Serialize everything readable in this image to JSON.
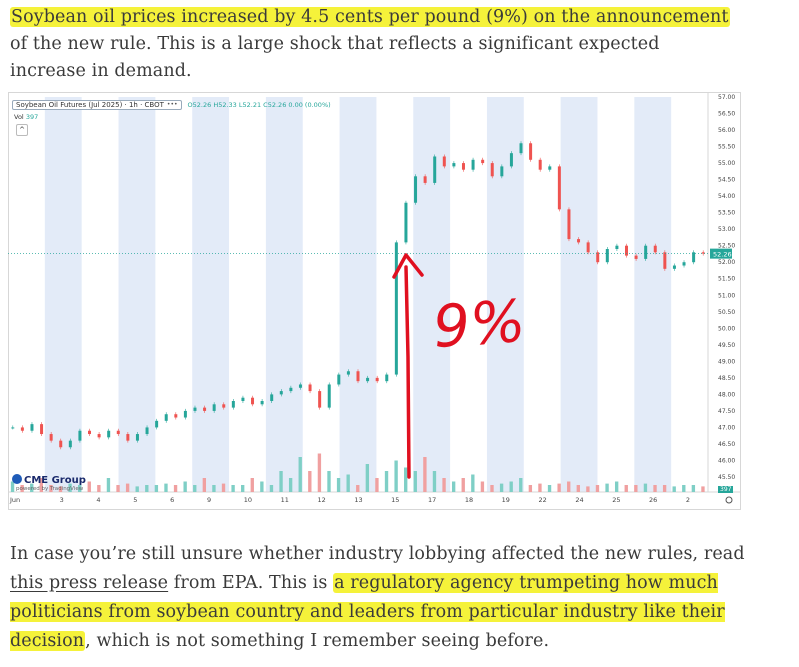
{
  "paragraph1": {
    "highlighted": "Soybean oil prices increased by 4.5 cents per pound (9%) on the announcement",
    "rest": " of the new rule. This is a large shock that reflects a significant expected increase in demand."
  },
  "paragraph2": {
    "part1": "In case you’re still unsure whether industry lobbying affected the new rules, read ",
    "link_text": "this press release",
    "part2": " from EPA. This is ",
    "highlighted": "a regulatory agency trumpeting how much politicians from soybean country and leaders from particular industry like their decision",
    "part3": ", which is not something I remember seeing before."
  },
  "chart_header": {
    "symbol": "Soybean Oil Futures (Jul 2025) · 1h · CBOT",
    "dots": "•••",
    "ohlc": "O52.26 H52.33 L52.21 C52.26 0.00 (0.00%)",
    "vol_label": "Vol",
    "vol_value": "397",
    "collapse": "^"
  },
  "chart_branding": {
    "logo": "CME Group",
    "powered": "powered by TradingView"
  },
  "annotation": {
    "text": "9%",
    "color": "#e01020"
  },
  "chart_data": {
    "type": "line",
    "title": "Soybean Oil Futures (Jul 2025) · 1h · CBOT",
    "x_ticks": [
      "Jun",
      "3",
      "4",
      "5",
      "6",
      "9",
      "10",
      "11",
      "12",
      "13",
      "15",
      "17",
      "18",
      "19",
      "22",
      "24",
      "25",
      "26",
      "2"
    ],
    "y_ticks": [
      45.5,
      46.0,
      46.5,
      47.0,
      47.5,
      48.0,
      48.5,
      49.0,
      49.5,
      50.0,
      50.5,
      51.0,
      51.5,
      52.0,
      52.5,
      53.0,
      53.5,
      54.0,
      54.5,
      55.0,
      55.5,
      56.0,
      56.5,
      57.0
    ],
    "ylim": [
      45.5,
      57.0
    ],
    "current_price_label": "52.26",
    "volume_label": "397",
    "colors": {
      "up": "#26a69a",
      "down": "#ef5350",
      "grid": "#e3ebf8",
      "price_line": "#26a69a"
    },
    "series": [
      {
        "values": [
          47.0,
          46.9,
          47.1,
          46.8,
          46.6,
          46.4,
          46.6,
          46.9,
          46.8,
          46.7,
          46.9,
          46.8,
          46.6,
          46.8,
          47.0,
          47.2,
          47.4,
          47.3,
          47.5,
          47.6,
          47.5,
          47.7,
          47.6,
          47.8,
          47.9,
          47.7,
          47.8,
          48.0,
          48.1,
          48.2,
          48.3,
          48.1,
          47.6,
          48.3,
          48.6,
          48.7,
          48.4,
          48.5,
          48.4,
          48.6,
          52.6,
          53.8,
          54.6,
          54.4,
          55.2,
          54.9,
          55.0,
          54.8,
          55.1,
          55.0,
          54.6,
          54.9,
          55.3,
          55.6,
          55.1,
          54.8,
          54.9,
          53.6,
          52.7,
          52.6,
          52.3,
          52.0,
          52.4,
          52.5,
          52.2,
          52.1,
          52.5,
          52.3,
          51.8,
          51.9,
          52.0,
          52.3,
          52.26
        ]
      }
    ],
    "volume": [
      0.15,
      0.1,
      0.12,
      0.2,
      0.1,
      0.08,
      0.12,
      0.1,
      0.15,
      0.1,
      0.2,
      0.1,
      0.12,
      0.08,
      0.1,
      0.1,
      0.12,
      0.1,
      0.15,
      0.1,
      0.2,
      0.1,
      0.12,
      0.1,
      0.1,
      0.2,
      0.15,
      0.1,
      0.3,
      0.2,
      0.5,
      0.3,
      0.55,
      0.3,
      0.2,
      0.25,
      0.1,
      0.4,
      0.2,
      0.3,
      0.45,
      0.35,
      0.3,
      0.5,
      0.3,
      0.2,
      0.15,
      0.2,
      0.25,
      0.15,
      0.1,
      0.12,
      0.15,
      0.2,
      0.1,
      0.12,
      0.1,
      0.12,
      0.15,
      0.1,
      0.08,
      0.1,
      0.12,
      0.15,
      0.1,
      0.1,
      0.12,
      0.1,
      0.1,
      0.08,
      0.1,
      0.1,
      0.08
    ]
  }
}
